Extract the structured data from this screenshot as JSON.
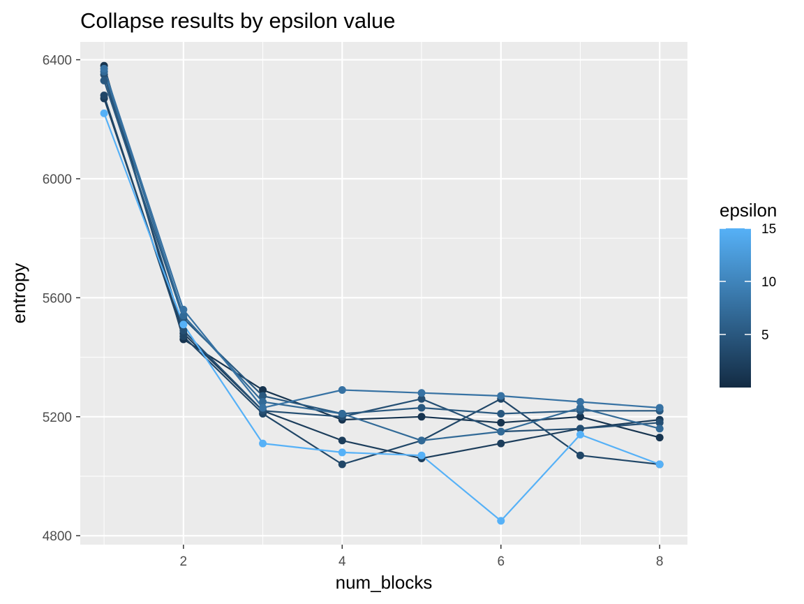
{
  "chart_data": {
    "type": "line",
    "title": "Collapse results by epsilon value",
    "xlabel": "num_blocks",
    "ylabel": "entropy",
    "xlim": [
      0.7,
      8.35
    ],
    "ylim": [
      4770,
      6460
    ],
    "x_ticks": [
      2,
      4,
      6,
      8
    ],
    "x_tick_labels": [
      "2",
      "4",
      "6",
      "8"
    ],
    "y_ticks": [
      4800,
      5200,
      5600,
      6000,
      6400
    ],
    "y_tick_labels": [
      "4800",
      "5200",
      "5600",
      "6000",
      "6400"
    ],
    "grid": true,
    "legend": {
      "title": "epsilon",
      "position": "right",
      "type": "colorbar",
      "range": [
        0,
        15
      ],
      "ticks": [
        5,
        10,
        15
      ],
      "tick_labels": [
        "5",
        "10",
        "15"
      ],
      "color_low": "#132b43",
      "color_high": "#56b1f7"
    },
    "x": [
      1,
      2,
      3,
      4,
      5,
      6,
      7,
      8
    ],
    "series": [
      {
        "epsilon": 15,
        "values": [
          6220,
          5510,
          5110,
          5080,
          5070,
          4850,
          5140,
          5040
        ]
      },
      {
        "epsilon": 8,
        "values": [
          6370,
          5560,
          5230,
          5290,
          5280,
          5270,
          5250,
          5230
        ]
      },
      {
        "epsilon": 7,
        "values": [
          6360,
          5540,
          5250,
          5210,
          5120,
          5150,
          5230,
          5160
        ]
      },
      {
        "epsilon": 5,
        "values": [
          6330,
          5530,
          5270,
          5210,
          5230,
          5210,
          5220,
          5220
        ]
      },
      {
        "epsilon": 4,
        "values": [
          6350,
          5490,
          5220,
          5200,
          5260,
          5150,
          5160,
          5180
        ]
      },
      {
        "epsilon": 3,
        "values": [
          6280,
          5470,
          5210,
          5040,
          5120,
          5260,
          5070,
          5040
        ]
      },
      {
        "epsilon": 2,
        "values": [
          6270,
          5480,
          5220,
          5120,
          5060,
          5110,
          5160,
          5190
        ]
      },
      {
        "epsilon": 1,
        "values": [
          6380,
          5460,
          5290,
          5190,
          5200,
          5180,
          5200,
          5130
        ]
      }
    ]
  }
}
